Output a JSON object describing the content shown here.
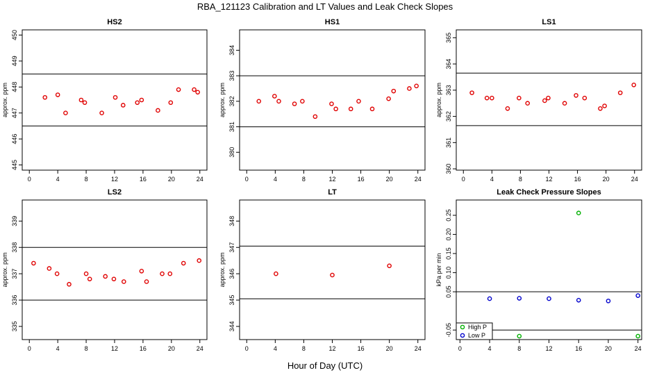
{
  "figure": {
    "title": "RBA_121123  Calibration and LT Values and Leak Check Slopes",
    "xlabel": "Hour of Day (UTC)"
  },
  "colors": {
    "red": "#e00000",
    "blue": "#0000cc",
    "green": "#00b000",
    "axis": "#000000"
  },
  "chart_data": [
    {
      "id": "hs2",
      "type": "scatter",
      "title": "HS2",
      "ylabel": "approx. ppm",
      "xlim": [
        -1,
        25
      ],
      "ylim": [
        444.8,
        450.2
      ],
      "xticks": [
        0,
        4,
        8,
        12,
        16,
        20,
        24
      ],
      "yticks": [
        445,
        446,
        447,
        448,
        449,
        450
      ],
      "hlines": [
        448.5,
        446.5
      ],
      "series": [
        {
          "name": "HS2",
          "color": "red",
          "x": [
            2.2,
            4.0,
            5.1,
            7.3,
            7.8,
            10.2,
            12.1,
            13.2,
            15.2,
            15.8,
            18.1,
            19.9,
            21.0,
            23.2,
            23.7
          ],
          "y": [
            447.6,
            447.7,
            447.0,
            447.5,
            447.4,
            447.0,
            447.6,
            447.3,
            447.4,
            447.5,
            447.1,
            447.4,
            447.9,
            447.9,
            447.8
          ]
        }
      ]
    },
    {
      "id": "hs1",
      "type": "scatter",
      "title": "HS1",
      "ylabel": "approx. ppm",
      "xlim": [
        -1,
        25
      ],
      "ylim": [
        379.3,
        384.8
      ],
      "xticks": [
        0,
        4,
        8,
        12,
        16,
        20,
        24
      ],
      "yticks": [
        380,
        381,
        382,
        383,
        384
      ],
      "hlines": [
        383.0,
        381.0
      ],
      "series": [
        {
          "name": "HS1",
          "color": "red",
          "x": [
            1.7,
            3.9,
            4.5,
            6.7,
            7.8,
            9.6,
            11.9,
            12.5,
            14.6,
            15.7,
            17.6,
            19.9,
            20.6,
            22.8,
            23.8
          ],
          "y": [
            382.0,
            382.2,
            382.0,
            381.9,
            382.0,
            381.4,
            381.9,
            381.7,
            381.7,
            382.0,
            381.7,
            382.1,
            382.4,
            382.5,
            382.6
          ]
        }
      ]
    },
    {
      "id": "ls1",
      "type": "scatter",
      "title": "LS1",
      "ylabel": "approx. ppm",
      "xlim": [
        -1,
        25
      ],
      "ylim": [
        359.95,
        365.3
      ],
      "xticks": [
        0,
        4,
        8,
        12,
        16,
        20,
        24
      ],
      "yticks": [
        360,
        361,
        362,
        363,
        364,
        365
      ],
      "hlines": [
        363.65,
        361.65
      ],
      "series": [
        {
          "name": "LS1",
          "color": "red",
          "x": [
            1.2,
            3.3,
            4.0,
            6.2,
            7.8,
            9.0,
            11.4,
            11.9,
            14.2,
            15.8,
            17.0,
            19.2,
            19.8,
            22.0,
            23.9
          ],
          "y": [
            362.9,
            362.7,
            362.7,
            362.3,
            362.7,
            362.5,
            362.6,
            362.7,
            362.5,
            362.8,
            362.7,
            362.3,
            362.4,
            362.9,
            363.2
          ]
        }
      ]
    },
    {
      "id": "ls2",
      "type": "scatter",
      "title": "LS2",
      "ylabel": "approx. ppm",
      "xlim": [
        -1,
        25
      ],
      "ylim": [
        334.5,
        339.8
      ],
      "xticks": [
        0,
        4,
        8,
        12,
        16,
        20,
        24
      ],
      "yticks": [
        335,
        336,
        337,
        338,
        339
      ],
      "hlines": [
        338.0,
        336.0
      ],
      "series": [
        {
          "name": "LS2",
          "color": "red",
          "x": [
            0.6,
            2.8,
            3.9,
            5.6,
            8.0,
            8.5,
            10.7,
            11.9,
            13.3,
            15.8,
            16.5,
            18.7,
            19.8,
            21.7,
            23.9
          ],
          "y": [
            337.4,
            337.2,
            337.0,
            336.6,
            337.0,
            336.8,
            336.9,
            336.8,
            336.7,
            337.1,
            336.7,
            337.0,
            337.0,
            337.4,
            337.5
          ]
        }
      ]
    },
    {
      "id": "lt",
      "type": "scatter",
      "title": "LT",
      "ylabel": "approx. ppm",
      "xlim": [
        -1,
        25
      ],
      "ylim": [
        343.5,
        348.8
      ],
      "xticks": [
        0,
        4,
        8,
        12,
        16,
        20,
        24
      ],
      "yticks": [
        344,
        345,
        346,
        347,
        348
      ],
      "hlines": [
        347.05,
        345.05
      ],
      "series": [
        {
          "name": "LT",
          "color": "red",
          "x": [
            4.1,
            12.0,
            20.0
          ],
          "y": [
            346.0,
            345.95,
            346.3
          ]
        }
      ]
    },
    {
      "id": "leak",
      "type": "scatter",
      "title": "Leak Check Pressure Slopes",
      "ylabel": "kPa per min",
      "xlim": [
        -0.5,
        24.5
      ],
      "ylim": [
        -0.075,
        0.29
      ],
      "xticks": [
        0,
        4,
        8,
        12,
        16,
        20,
        24
      ],
      "yticks": [
        -0.05,
        0.05,
        0.1,
        0.15,
        0.2,
        0.25
      ],
      "ytick_labels": [
        "-0.05",
        "0.05",
        "0.10",
        "0.15",
        "0.20",
        "0.25"
      ],
      "hlines": [
        0.05,
        -0.05
      ],
      "series": [
        {
          "name": "High P",
          "color": "green",
          "x": [
            8,
            16,
            24
          ],
          "y": [
            -0.066,
            0.256,
            -0.066
          ]
        },
        {
          "name": "Low P",
          "color": "blue",
          "x": [
            4,
            8,
            12,
            16,
            20,
            24
          ],
          "y": [
            0.032,
            0.033,
            0.032,
            0.028,
            0.026,
            0.04
          ]
        }
      ],
      "legend": {
        "position": "bottom-left",
        "entries": [
          "High P",
          "Low P"
        ]
      }
    }
  ]
}
